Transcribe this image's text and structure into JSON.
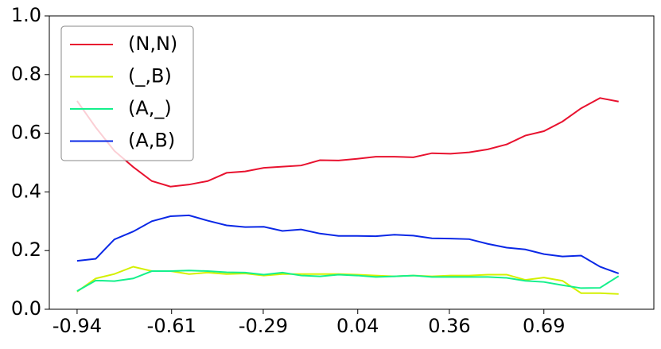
{
  "chart_data": {
    "type": "line",
    "x": [
      -0.94,
      -0.875,
      -0.81,
      -0.744,
      -0.679,
      -0.614,
      -0.549,
      -0.484,
      -0.418,
      -0.353,
      -0.288,
      -0.223,
      -0.158,
      -0.092,
      -0.027,
      0.038,
      0.103,
      0.168,
      0.234,
      0.299,
      0.364,
      0.429,
      0.494,
      0.56,
      0.625,
      0.69,
      0.755,
      0.82,
      0.886,
      0.951
    ],
    "series": [
      {
        "name": "(N,N)",
        "color": "#e8122f",
        "values": [
          0.71,
          0.62,
          0.54,
          0.485,
          0.437,
          0.418,
          0.425,
          0.437,
          0.465,
          0.47,
          0.482,
          0.486,
          0.49,
          0.508,
          0.507,
          0.513,
          0.52,
          0.52,
          0.518,
          0.532,
          0.53,
          0.535,
          0.545,
          0.562,
          0.592,
          0.607,
          0.64,
          0.685,
          0.72,
          0.708
        ]
      },
      {
        "name": "(_,B)",
        "color": "#d4f000",
        "values": [
          0.06,
          0.105,
          0.12,
          0.145,
          0.13,
          0.13,
          0.12,
          0.125,
          0.12,
          0.122,
          0.115,
          0.12,
          0.12,
          0.12,
          0.12,
          0.118,
          0.115,
          0.112,
          0.115,
          0.112,
          0.115,
          0.115,
          0.118,
          0.118,
          0.1,
          0.108,
          0.097,
          0.055,
          0.055,
          0.052
        ]
      },
      {
        "name": "(A,_)",
        "color": "#14f08c",
        "values": [
          0.062,
          0.098,
          0.096,
          0.105,
          0.13,
          0.13,
          0.132,
          0.13,
          0.126,
          0.125,
          0.118,
          0.125,
          0.115,
          0.112,
          0.118,
          0.115,
          0.11,
          0.112,
          0.115,
          0.11,
          0.11,
          0.11,
          0.11,
          0.107,
          0.097,
          0.093,
          0.082,
          0.072,
          0.073,
          0.113
        ]
      },
      {
        "name": "(A,B)",
        "color": "#0a28e6",
        "values": [
          0.165,
          0.172,
          0.238,
          0.265,
          0.3,
          0.317,
          0.32,
          0.302,
          0.286,
          0.28,
          0.281,
          0.267,
          0.272,
          0.258,
          0.25,
          0.25,
          0.249,
          0.254,
          0.251,
          0.242,
          0.241,
          0.239,
          0.223,
          0.21,
          0.204,
          0.188,
          0.18,
          0.183,
          0.145,
          0.122
        ]
      }
    ],
    "xlim": [
      -1.037,
      1.074
    ],
    "xticks": [
      -0.94,
      -0.61,
      -0.29,
      0.04,
      0.36,
      0.69
    ],
    "ylim": [
      0,
      1
    ],
    "yticks": [
      {
        "value": 0,
        "label": "0.0"
      },
      0.2,
      0.4,
      0.6,
      0.8,
      {
        "value": 1,
        "label": "1.0"
      }
    ],
    "legend": "upper left"
  }
}
